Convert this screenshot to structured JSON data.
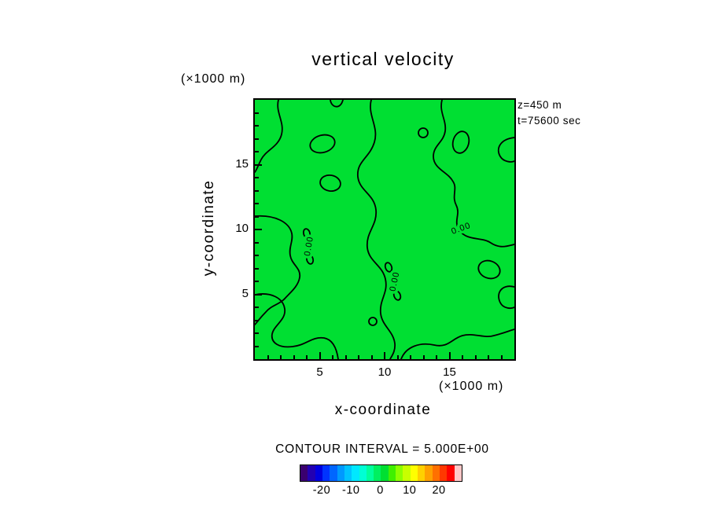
{
  "title": "vertical velocity",
  "annotations": {
    "z": "z=450 m",
    "t": "t=75600 sec"
  },
  "axes": {
    "x": {
      "label": "x-coordinate",
      "unit": "(×1000 m)",
      "range": [
        0,
        20
      ],
      "major_ticks": [
        5,
        10,
        15
      ],
      "minor_step": 1
    },
    "y": {
      "label": "y-coordinate",
      "unit": "(×1000 m)",
      "range": [
        0,
        20
      ],
      "major_ticks": [
        5,
        10,
        15
      ],
      "minor_step": 1
    }
  },
  "contour": {
    "label": "0.00",
    "interval_text": "CONTOUR INTERVAL = 5.000E+00",
    "interval": 5.0,
    "level_shown": 0.0
  },
  "colors": {
    "plot_fill": "#00df32",
    "contour_line": "#000000",
    "background": "#ffffff"
  },
  "colorbar": {
    "range": [
      -27.5,
      27.5
    ],
    "tick_labels": [
      "-20",
      "-10",
      "0",
      "10",
      "20"
    ],
    "tick_values": [
      -20,
      -10,
      0,
      10,
      20
    ],
    "colors": [
      "#3a006f",
      "#2200b2",
      "#0000e0",
      "#0033ff",
      "#0066ff",
      "#0099ff",
      "#00c3ff",
      "#00e8ff",
      "#00ffd5",
      "#00ff9c",
      "#00f060",
      "#00df32",
      "#40f000",
      "#8cff00",
      "#c8ff00",
      "#ffff00",
      "#ffd000",
      "#ffa000",
      "#ff7000",
      "#ff3800",
      "#ff0000",
      "#ffc8c8"
    ]
  },
  "chart_data": {
    "type": "contour",
    "title": "vertical velocity",
    "xlabel": "x-coordinate (×1000 m)",
    "ylabel": "y-coordinate (×1000 m)",
    "xlim": [
      0,
      20
    ],
    "ylim": [
      0,
      20
    ],
    "x_ticks": [
      5,
      10,
      15
    ],
    "y_ticks": [
      5,
      10,
      15
    ],
    "z_level_text": "z=450 m",
    "time_text": "t=75600 sec",
    "contour_interval": 5.0,
    "visible_contour_levels": [
      0.0
    ],
    "contour_label": "0.00",
    "field_description": "vertical velocity field near zero everywhere; single green fill band (-5 to 5) with meandering 0.00 contour lines and small closed loops scattered across the domain",
    "colorbar": {
      "tick_values": [
        -20,
        -10,
        0,
        10,
        20
      ],
      "segment_interval": 2.5,
      "range": [
        -27.5,
        27.5
      ],
      "legend_position": "bottom"
    },
    "grid": false
  }
}
